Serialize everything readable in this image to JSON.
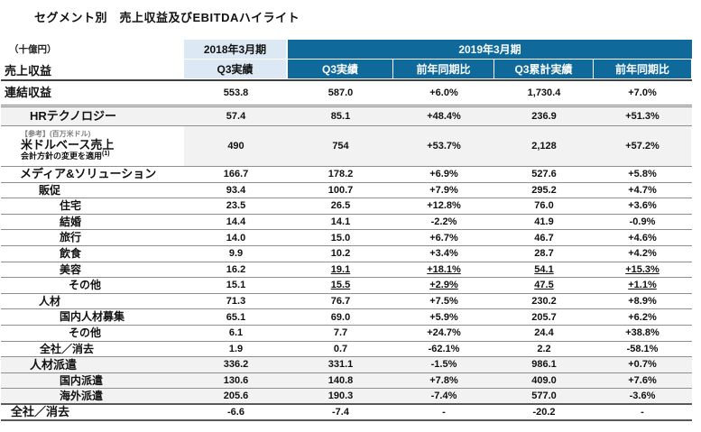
{
  "title": "セグメント別　売上収益及びEBITDAハイライト",
  "colors": {
    "header_blue": "#0f6a9b",
    "header_light_blue": "#dce9f5",
    "row_shade": "#f2f2f2",
    "rule_dark": "#3f3f3f",
    "rule_gray": "#8f8f8f"
  },
  "table": {
    "unit_label": "（十億円）",
    "metric_label": "売上収益",
    "header": {
      "fy2018": "2018年3月期",
      "fy2018_col": "Q3実績",
      "fy2019": "2019年3月期",
      "fy2019_cols": [
        "Q3実績",
        "前年同期比",
        "Q3累計実績",
        "前年同期比"
      ]
    },
    "rows": [
      {
        "label": "連結収益",
        "indent": 4,
        "em": true,
        "classes": "consolidated",
        "values": [
          "553.8",
          "587.0",
          "+6.0%",
          "1,730.4",
          "+7.0%"
        ]
      },
      {
        "label": "HRテクノロジー",
        "indent": 32,
        "em": true,
        "shade": "row",
        "classes": "hr",
        "values": [
          "57.4",
          "85.1",
          "+48.4%",
          "236.9",
          "+51.3%"
        ]
      },
      {
        "label": "米ドルベース売上",
        "indent": 22,
        "em": true,
        "shade": "values",
        "classes": "usd",
        "note_top": "【参考】(百万米ドル)",
        "note_bottom": "会計方針の変更を適用",
        "note_sup": "(1)",
        "values": [
          "490",
          "754",
          "+53.7%",
          "2,128",
          "+57.2%"
        ]
      },
      {
        "label": "メディア&ソリューション",
        "indent": 21,
        "em": true,
        "values": [
          "166.7",
          "178.2",
          "+6.9%",
          "527.6",
          "+5.8%"
        ]
      },
      {
        "label": "販促",
        "indent": 42,
        "values": [
          "93.4",
          "100.7",
          "+7.9%",
          "295.2",
          "+4.7%"
        ]
      },
      {
        "label": "住宅",
        "indent": 65,
        "values": [
          "23.5",
          "26.5",
          "+12.8%",
          "76.0",
          "+3.6%"
        ]
      },
      {
        "label": "結婚",
        "indent": 65,
        "values": [
          "14.4",
          "14.1",
          "-2.2%",
          "41.9",
          "-0.9%"
        ]
      },
      {
        "label": "旅行",
        "indent": 65,
        "values": [
          "14.0",
          "15.0",
          "+6.7%",
          "46.7",
          "+4.6%"
        ]
      },
      {
        "label": "飲食",
        "indent": 65,
        "values": [
          "9.9",
          "10.2",
          "+3.4%",
          "28.7",
          "+4.2%"
        ]
      },
      {
        "label": "美容",
        "indent": 65,
        "underline_from": 1,
        "values": [
          "16.2",
          "19.1",
          "+18.1%",
          "54.1",
          "+15.3%"
        ]
      },
      {
        "label": "その他",
        "indent": 75,
        "underline_from": 1,
        "values": [
          "15.1",
          "15.5",
          "+2.9%",
          "47.5",
          "+1.1%"
        ]
      },
      {
        "label": "人材",
        "indent": 42,
        "values": [
          "71.3",
          "76.7",
          "+7.5%",
          "230.2",
          "+8.9%"
        ]
      },
      {
        "label": "国内人材募集",
        "indent": 65,
        "values": [
          "65.1",
          "69.0",
          "+5.9%",
          "205.7",
          "+6.2%"
        ]
      },
      {
        "label": "その他",
        "indent": 75,
        "values": [
          "6.1",
          "7.7",
          "+24.7%",
          "24.4",
          "+38.8%"
        ]
      },
      {
        "label": "全社／消去",
        "indent": 43,
        "values": [
          "1.9",
          "0.7",
          "-62.1%",
          "2.2",
          "-58.1%"
        ]
      },
      {
        "label": "人材派遣",
        "indent": 32,
        "em": true,
        "shade": "row",
        "values": [
          "336.2",
          "331.1",
          "-1.5%",
          "986.1",
          "+0.7%"
        ]
      },
      {
        "label": "国内派遣",
        "indent": 65,
        "shade": "row",
        "values": [
          "130.6",
          "140.8",
          "+7.8%",
          "409.0",
          "+7.6%"
        ]
      },
      {
        "label": "海外派遣",
        "indent": 65,
        "shade": "row",
        "classes": "thick-bottom",
        "values": [
          "205.6",
          "190.3",
          "-7.4%",
          "577.0",
          "-3.6%"
        ]
      },
      {
        "label": "全社／消去",
        "indent": 11,
        "em": true,
        "classes": "thick-bottom",
        "values": [
          "-6.6",
          "-7.4",
          "-",
          "-20.2",
          "-"
        ]
      }
    ]
  }
}
